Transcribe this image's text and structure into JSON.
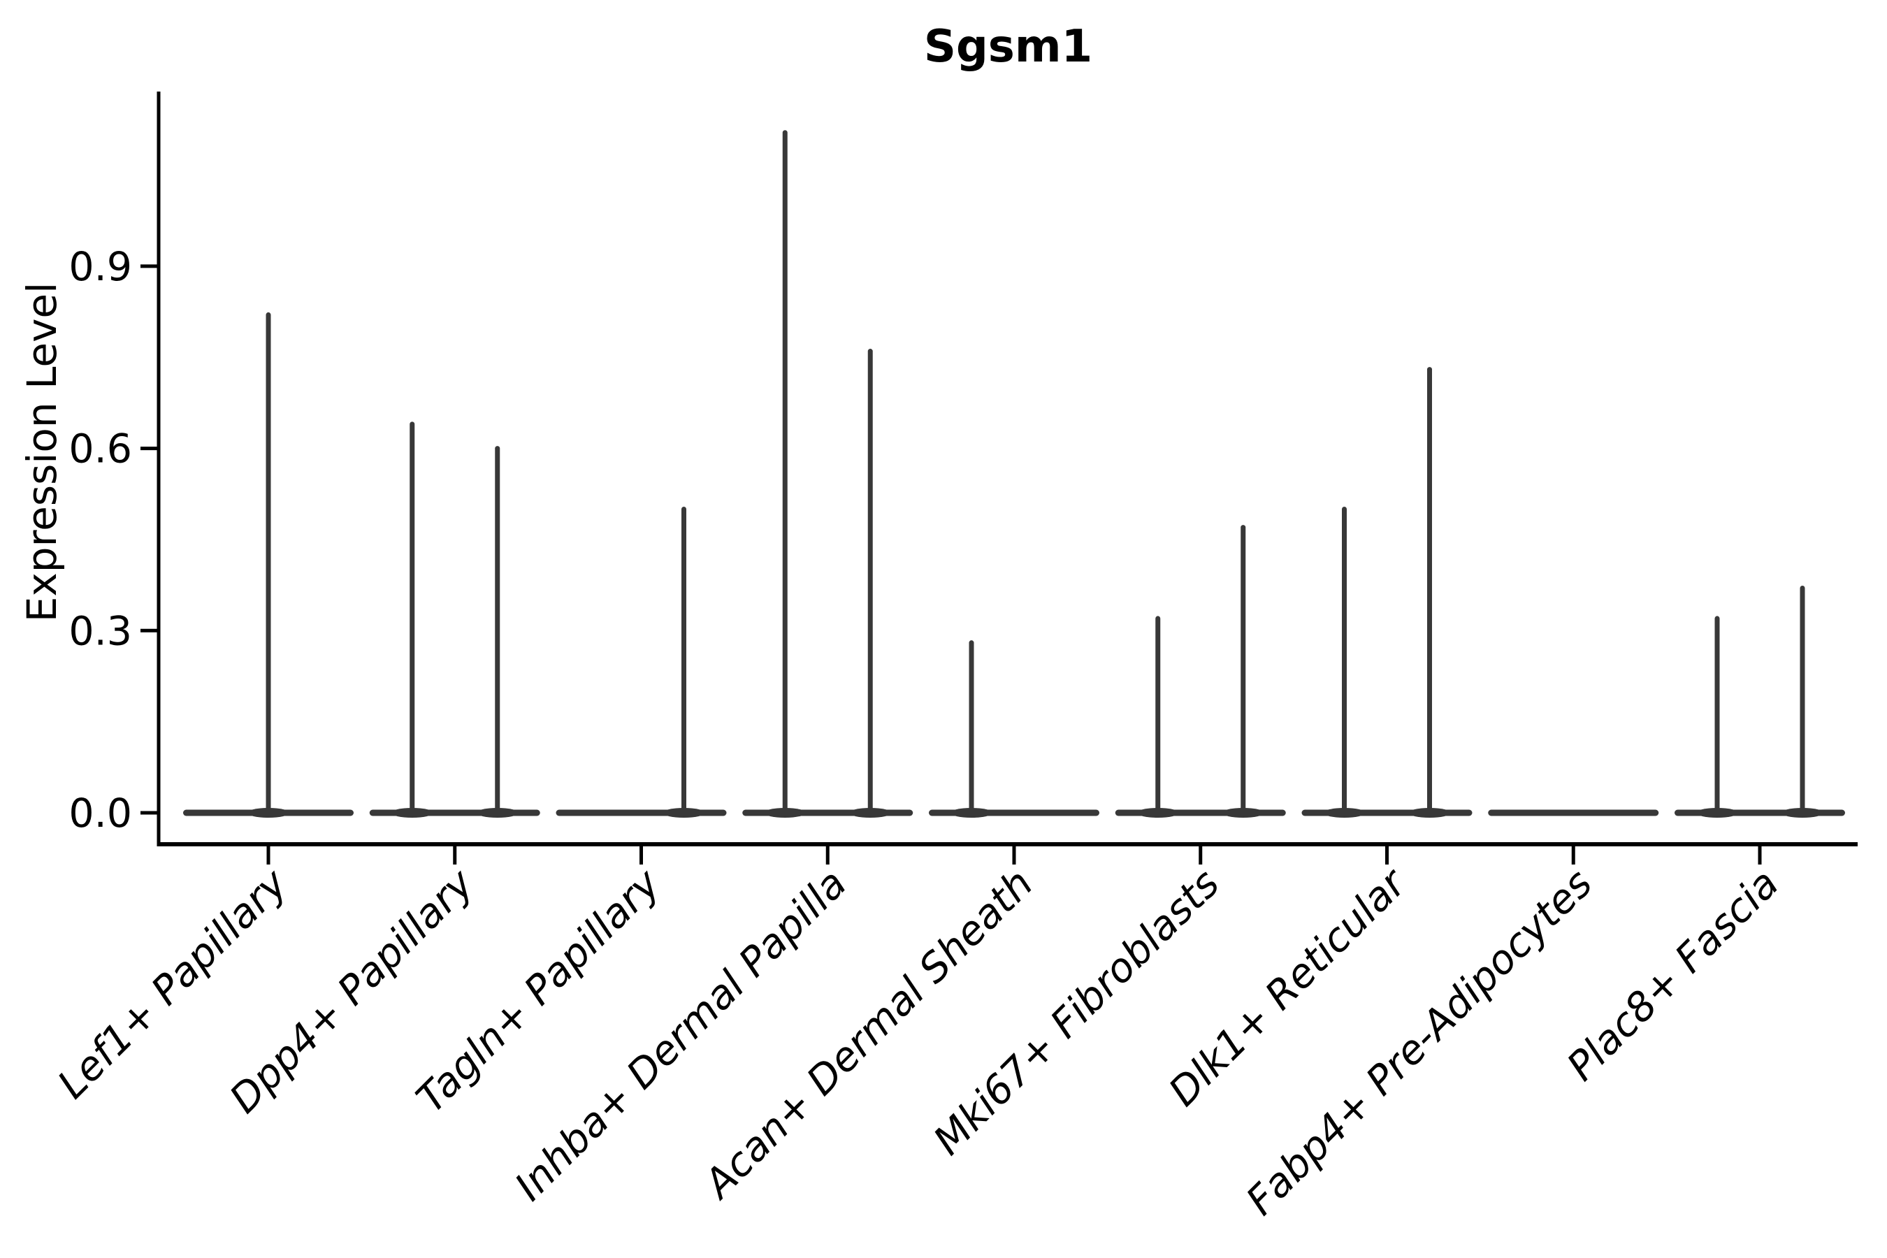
{
  "chart_data": {
    "type": "violin",
    "title": "Sgsm1",
    "ylabel": "Expression Level",
    "xlabel": "",
    "ytick_labels": [
      "0.0",
      "0.3",
      "0.6",
      "0.9"
    ],
    "ytick_values": [
      0.0,
      0.3,
      0.6,
      0.9
    ],
    "ylim": [
      -0.05,
      1.19
    ],
    "grid": false,
    "legend": "none",
    "violin_color": "#383838",
    "axis_color": "#000000",
    "categories": [
      "Lef1+ Papillary",
      "Dpp4+ Papillary",
      "Tagln+ Papillary",
      "Inhba+ Dermal Papilla",
      "Acan+ Dermal Sheath",
      "Mki67+ Fibroblasts",
      "Dlk1+ Reticular",
      "Fabp4+ Pre-Adipocytes",
      "Plac8+ Fascia"
    ],
    "violins": [
      {
        "category": "Lef1+ Papillary",
        "spikes": [
          {
            "pos": "center",
            "max": 0.82
          }
        ]
      },
      {
        "category": "Dpp4+ Papillary",
        "spikes": [
          {
            "pos": "left",
            "max": 0.64
          },
          {
            "pos": "right",
            "max": 0.6
          }
        ]
      },
      {
        "category": "Tagln+ Papillary",
        "spikes": [
          {
            "pos": "right",
            "max": 0.5
          }
        ]
      },
      {
        "category": "Inhba+ Dermal Papilla",
        "spikes": [
          {
            "pos": "left",
            "max": 1.12
          },
          {
            "pos": "right",
            "max": 0.76
          }
        ]
      },
      {
        "category": "Acan+ Dermal Sheath",
        "spikes": [
          {
            "pos": "left",
            "max": 0.28
          }
        ]
      },
      {
        "category": "Mki67+ Fibroblasts",
        "spikes": [
          {
            "pos": "left",
            "max": 0.32
          },
          {
            "pos": "right",
            "max": 0.47
          }
        ]
      },
      {
        "category": "Dlk1+ Reticular",
        "spikes": [
          {
            "pos": "left",
            "max": 0.5
          },
          {
            "pos": "right",
            "max": 0.73
          }
        ]
      },
      {
        "category": "Fabp4+ Pre-Adipocytes",
        "spikes": []
      },
      {
        "category": "Plac8+ Fascia",
        "spikes": [
          {
            "pos": "left",
            "max": 0.32
          },
          {
            "pos": "right",
            "max": 0.37
          }
        ]
      }
    ]
  }
}
